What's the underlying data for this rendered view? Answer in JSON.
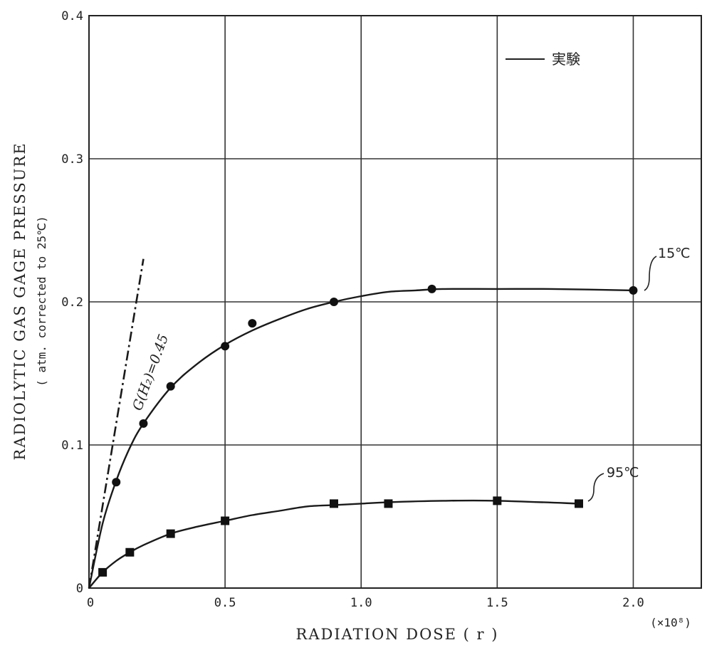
{
  "chart_data": {
    "type": "scatter",
    "xlabel": "RADIATION DOSE ( r )",
    "x_multiplier": "(×10⁸)",
    "ylabel": "RADIOLYTIC GAS GAGE PRESSURE",
    "ylabel_sub": "( atm. corrected to 25℃)",
    "xlim": [
      0,
      2.25
    ],
    "ylim": [
      0,
      0.4
    ],
    "x_ticks": [
      "0",
      "0.5",
      "1.0",
      "1.5",
      "2.0"
    ],
    "y_ticks": [
      "0",
      "0.1",
      "0.2",
      "0.3",
      "0.4"
    ],
    "grid": true,
    "legend": {
      "position": "top-right",
      "entries": [
        {
          "label": "実験",
          "style": "solid line"
        }
      ]
    },
    "series": [
      {
        "name": "15℃",
        "marker": "circle",
        "x": [
          0.1,
          0.2,
          0.3,
          0.5,
          0.6,
          0.9,
          1.26,
          2.0
        ],
        "y": [
          0.074,
          0.115,
          0.141,
          0.169,
          0.185,
          0.2,
          0.209,
          0.208
        ],
        "curve_x": [
          0,
          0.05,
          0.1,
          0.15,
          0.2,
          0.3,
          0.4,
          0.5,
          0.6,
          0.7,
          0.8,
          0.9,
          1.0,
          1.1,
          1.2,
          1.3,
          1.5,
          1.7,
          2.0
        ],
        "curve_y": [
          0,
          0.045,
          0.075,
          0.098,
          0.115,
          0.14,
          0.157,
          0.17,
          0.18,
          0.188,
          0.195,
          0.2,
          0.204,
          0.207,
          0.208,
          0.209,
          0.209,
          0.209,
          0.208
        ]
      },
      {
        "name": "95℃",
        "marker": "square",
        "x": [
          0.05,
          0.15,
          0.3,
          0.5,
          0.9,
          1.1,
          1.5,
          1.8
        ],
        "y": [
          0.011,
          0.025,
          0.038,
          0.047,
          0.059,
          0.059,
          0.061,
          0.059
        ],
        "curve_x": [
          0,
          0.05,
          0.1,
          0.15,
          0.2,
          0.3,
          0.4,
          0.5,
          0.6,
          0.7,
          0.8,
          0.9,
          1.0,
          1.1,
          1.3,
          1.5,
          1.8
        ],
        "curve_y": [
          0,
          0.011,
          0.019,
          0.025,
          0.03,
          0.038,
          0.043,
          0.047,
          0.051,
          0.054,
          0.057,
          0.058,
          0.059,
          0.06,
          0.061,
          0.061,
          0.059
        ]
      },
      {
        "name": "G(H₂)=0.45",
        "style": "dash-dot line",
        "x": [
          0,
          0.2
        ],
        "y": [
          0,
          0.23
        ]
      }
    ]
  }
}
